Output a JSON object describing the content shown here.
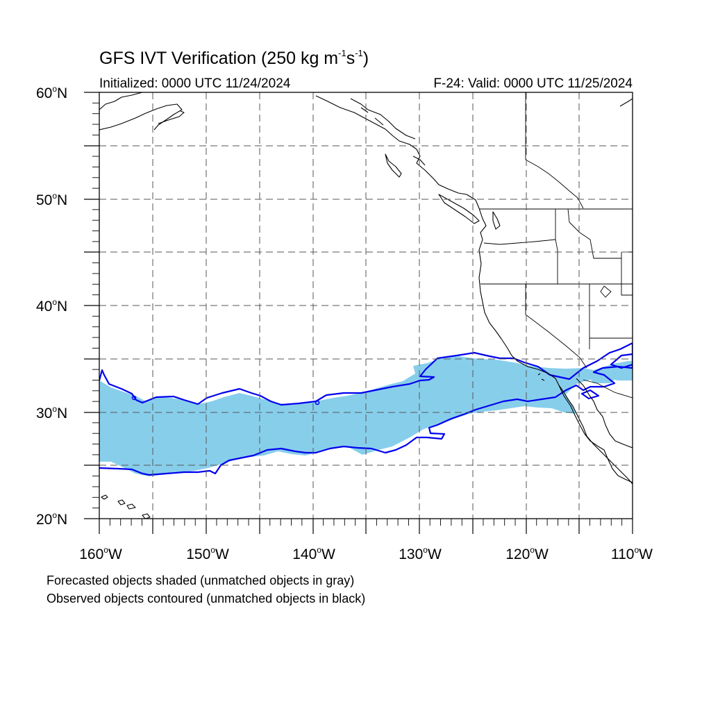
{
  "title": {
    "main": "GFS IVT Verification (250 kg m",
    "sup1": "-1",
    "mid": "s",
    "sup2": "-1",
    "end": ")"
  },
  "subtitle": {
    "initialized": "Initialized: 0000 UTC 11/24/2024",
    "valid": "F-24: Valid: 0000 UTC 11/25/2024"
  },
  "axes": {
    "lat_ticks": [
      {
        "num": "60",
        "deg": "o",
        "dir": "N"
      },
      {
        "num": "50",
        "deg": "o",
        "dir": "N"
      },
      {
        "num": "40",
        "deg": "o",
        "dir": "N"
      },
      {
        "num": "30",
        "deg": "o",
        "dir": "N"
      },
      {
        "num": "20",
        "deg": "o",
        "dir": "N"
      }
    ],
    "lon_ticks": [
      {
        "num": "160",
        "deg": "o",
        "dir": "W"
      },
      {
        "num": "150",
        "deg": "o",
        "dir": "W"
      },
      {
        "num": "140",
        "deg": "o",
        "dir": "W"
      },
      {
        "num": "130",
        "deg": "o",
        "dir": "W"
      },
      {
        "num": "120",
        "deg": "o",
        "dir": "W"
      },
      {
        "num": "110",
        "deg": "o",
        "dir": "W"
      }
    ],
    "lat_range": [
      20,
      60
    ],
    "lon_range": [
      -160,
      -110
    ],
    "grid": "dashed every 5 degrees"
  },
  "legend": {
    "line1": "Forecasted objects shaded (unmatched objects in gray)",
    "line2": "Observed objects contoured (unmatched objects in black)"
  },
  "colors": {
    "forecast_fill": "#87ceeb",
    "observed_contour": "#0000ee",
    "coastline": "#000000",
    "grid": "#555555"
  }
}
